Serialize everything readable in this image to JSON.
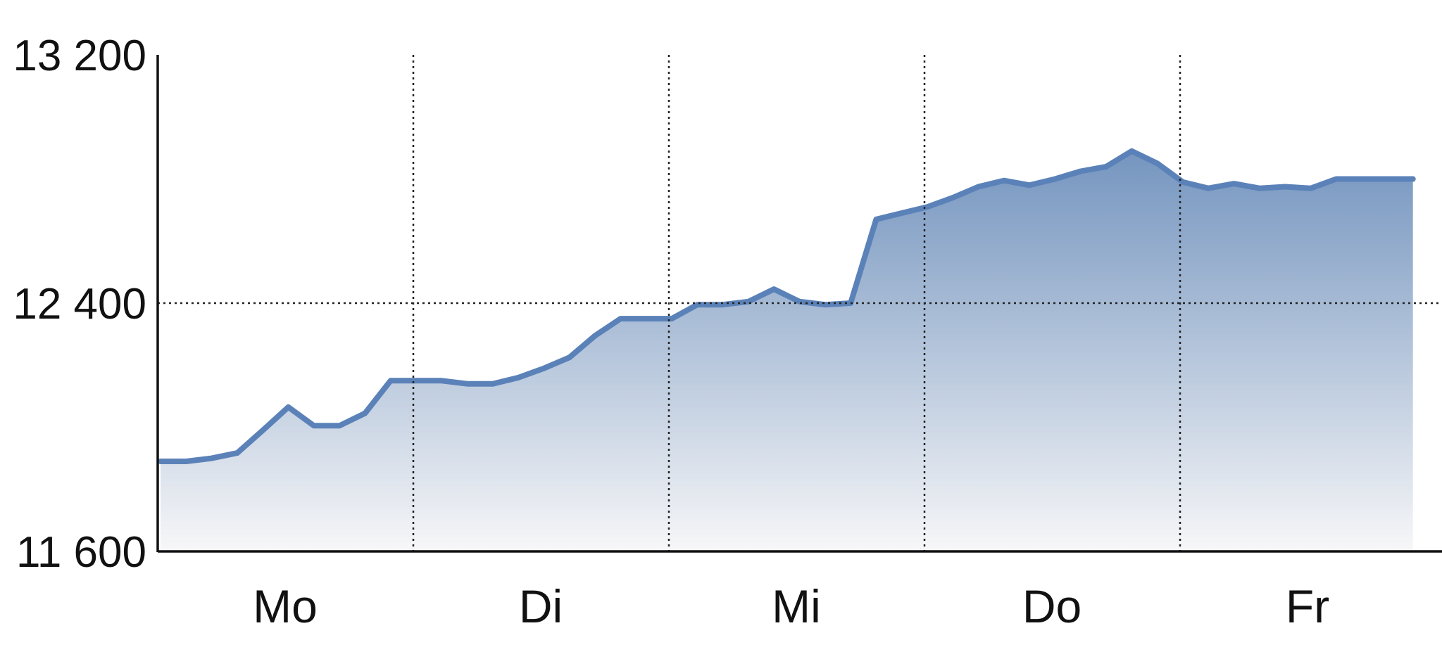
{
  "chart_data": {
    "type": "area",
    "title": "",
    "xlabel": "",
    "ylabel": "",
    "y_tick_values": [
      11600,
      12400,
      13200
    ],
    "y_tick_labels": [
      "11 600",
      "12 400",
      "13 200"
    ],
    "ylim": [
      11600,
      13200
    ],
    "categories": [
      "Mo",
      "Di",
      "Mi",
      "Do",
      "Fr"
    ],
    "grid": "dotted vertical lines between days, dotted horizontal line at 12 400",
    "colors": {
      "line": "#5b82b8",
      "fill_top": "#6e90bc",
      "fill_bottom": "#f7f7f8",
      "axis": "#111111",
      "grid": "#222222"
    },
    "series": [
      {
        "x": [
          0.0,
          0.1,
          0.2,
          0.3,
          0.4,
          0.5,
          0.6,
          0.7,
          0.8,
          0.9,
          1.0,
          1.0,
          1.1,
          1.2,
          1.3,
          1.4,
          1.5,
          1.6,
          1.7,
          1.8,
          1.9,
          2.0,
          2.0,
          2.1,
          2.2,
          2.3,
          2.4,
          2.5,
          2.6,
          2.7,
          2.8,
          2.9,
          3.0,
          3.0,
          3.1,
          3.2,
          3.3,
          3.4,
          3.5,
          3.6,
          3.7,
          3.8,
          3.9,
          4.0,
          4.0,
          4.1,
          4.2,
          4.3,
          4.4,
          4.5,
          4.6,
          4.7,
          4.8,
          4.9
        ],
        "values": [
          11890,
          11890,
          11900,
          11917,
          11990,
          12065,
          12005,
          12005,
          12045,
          12150,
          12150,
          12150,
          12150,
          12140,
          12140,
          12160,
          12190,
          12225,
          12295,
          12350,
          12350,
          12350,
          12350,
          12395,
          12395,
          12405,
          12445,
          12405,
          12395,
          12400,
          12670,
          12690,
          12710,
          12710,
          12740,
          12775,
          12795,
          12780,
          12800,
          12825,
          12840,
          12890,
          12850,
          12790,
          12790,
          12770,
          12785,
          12770,
          12775,
          12770,
          12800,
          12800,
          12800,
          12800
        ]
      }
    ]
  }
}
